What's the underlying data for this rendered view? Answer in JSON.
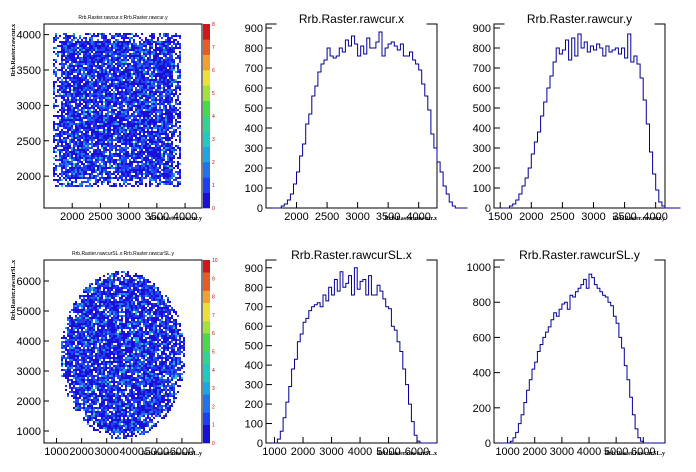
{
  "chart_data": [
    {
      "type": "heatmap",
      "title": "Rrb.Raster.rawcur.x:Rrb.Raster.rawcur.y",
      "xlabel": "Rrb.Raster.rawcur.y",
      "ylabel": "Rrb.Raster.rawcur.x",
      "xlim": [
        1500,
        4300
      ],
      "ylim": [
        1550,
        4150
      ],
      "xticks": [
        "2000",
        "2500",
        "3000",
        "3500",
        "4000"
      ],
      "yticks": [
        "2000",
        "2500",
        "3000",
        "3500",
        "4000"
      ],
      "shape": "square",
      "x_range": [
        1650,
        3900
      ],
      "y_range": [
        1850,
        4050
      ],
      "zlim": [
        0,
        8
      ],
      "zticks": [
        "0",
        "1",
        "2",
        "3",
        "4",
        "5",
        "6",
        "7",
        "8"
      ]
    },
    {
      "type": "bar",
      "title": "Rrb.Raster.rawcur.x",
      "xlabel": "Rrb.Raster.rawcur.x",
      "xlim": [
        1500,
        4300
      ],
      "ylim": [
        0,
        920
      ],
      "xticks": [
        "2000",
        "2500",
        "3000",
        "3500",
        "4000"
      ],
      "yticks": [
        "0",
        "100",
        "200",
        "300",
        "400",
        "500",
        "600",
        "700",
        "800",
        "900"
      ],
      "x_start": 1500,
      "bin_width": 50,
      "values": [
        0,
        0,
        0,
        0,
        0,
        10,
        20,
        40,
        70,
        120,
        180,
        260,
        320,
        420,
        470,
        560,
        610,
        680,
        720,
        740,
        800,
        760,
        750,
        760,
        800,
        780,
        840,
        810,
        860,
        820,
        760,
        810,
        770,
        850,
        800,
        800,
        830,
        880,
        760,
        800,
        820,
        830,
        810,
        790,
        820,
        760,
        760,
        780,
        740,
        720,
        690,
        620,
        560,
        490,
        370,
        300,
        230,
        180,
        110,
        70,
        30,
        10,
        0,
        0,
        0,
        0
      ]
    },
    {
      "type": "bar",
      "title": "Rrb.Raster.rawcur.y",
      "xlabel": "Rrb.Raster.rawcur.y",
      "xlim": [
        1400,
        4150
      ],
      "ylim": [
        0,
        920
      ],
      "xticks": [
        "1500",
        "2000",
        "2500",
        "3000",
        "3500",
        "4000"
      ],
      "yticks": [
        "0",
        "100",
        "200",
        "300",
        "400",
        "500",
        "600",
        "700",
        "800",
        "900"
      ],
      "x_start": 1400,
      "bin_width": 50,
      "values": [
        0,
        0,
        0,
        0,
        0,
        10,
        20,
        40,
        70,
        110,
        150,
        200,
        270,
        330,
        380,
        460,
        530,
        600,
        660,
        730,
        800,
        770,
        790,
        840,
        740,
        850,
        760,
        870,
        800,
        830,
        780,
        810,
        790,
        820,
        800,
        760,
        810,
        780,
        790,
        800,
        770,
        800,
        750,
        870,
        730,
        760,
        720,
        650,
        540,
        420,
        280,
        170,
        90,
        30,
        10,
        0,
        0,
        0,
        0,
        0
      ]
    },
    {
      "type": "heatmap",
      "title": "Rrb.Raster.rawcurSL.x:Rrb.Raster.rawcurSL.y",
      "xlabel": "Rrb.Raster.rawcurSL.y",
      "ylabel": "Rrb.Raster.rawcurSL.x",
      "xlim": [
        500,
        6800
      ],
      "ylim": [
        600,
        6700
      ],
      "xticks": [
        "1000",
        "2000",
        "3000",
        "4000",
        "5000",
        "6000"
      ],
      "yticks": [
        "1000",
        "2000",
        "3000",
        "4000",
        "5000",
        "6000"
      ],
      "shape": "disc",
      "center": [
        3600,
        3550
      ],
      "radius": [
        2500,
        2800
      ],
      "zlim": [
        0,
        10
      ],
      "zticks": [
        "0",
        "1",
        "2",
        "3",
        "4",
        "5",
        "6",
        "7",
        "8",
        "9",
        "10"
      ]
    },
    {
      "type": "bar",
      "title": "Rrb.Raster.rawcurSL.x",
      "xlabel": "Rrb.Raster.rawcurSL.x",
      "xlim": [
        700,
        6700
      ],
      "ylim": [
        0,
        940
      ],
      "xticks": [
        "1000",
        "2000",
        "3000",
        "4000",
        "5000",
        "6000"
      ],
      "yticks": [
        "0",
        "100",
        "200",
        "300",
        "400",
        "500",
        "600",
        "700",
        "800",
        "900"
      ],
      "x_start": 700,
      "bin_width": 100,
      "values": [
        0,
        0,
        0,
        0,
        20,
        60,
        130,
        210,
        290,
        380,
        430,
        520,
        560,
        620,
        640,
        680,
        700,
        710,
        720,
        700,
        760,
        730,
        800,
        760,
        840,
        780,
        880,
        800,
        820,
        860,
        760,
        900,
        790,
        830,
        840,
        760,
        860,
        760,
        760,
        810,
        780,
        740,
        700,
        690,
        600,
        580,
        520,
        470,
        380,
        300,
        200,
        110,
        40,
        10,
        0,
        0,
        0,
        0,
        0,
        0
      ]
    },
    {
      "type": "bar",
      "title": "Rrb.Raster.rawcurSL.y",
      "xlabel": "Rrb.Raster.rawcurSL.y",
      "xlim": [
        500,
        6800
      ],
      "ylim": [
        0,
        1040
      ],
      "xticks": [
        "1000",
        "2000",
        "3000",
        "4000",
        "5000",
        "6000"
      ],
      "yticks": [
        "0",
        "200",
        "400",
        "600",
        "800",
        "1000"
      ],
      "x_start": 500,
      "bin_width": 100,
      "values": [
        0,
        0,
        0,
        0,
        0,
        0,
        10,
        30,
        60,
        110,
        160,
        230,
        300,
        360,
        420,
        460,
        520,
        560,
        600,
        630,
        660,
        700,
        740,
        720,
        760,
        790,
        800,
        760,
        840,
        830,
        860,
        880,
        900,
        930,
        880,
        960,
        940,
        900,
        880,
        860,
        840,
        830,
        800,
        780,
        720,
        680,
        600,
        540,
        440,
        360,
        260,
        160,
        80,
        30,
        10,
        0,
        0,
        0,
        0,
        0,
        0,
        0,
        0
      ]
    }
  ]
}
